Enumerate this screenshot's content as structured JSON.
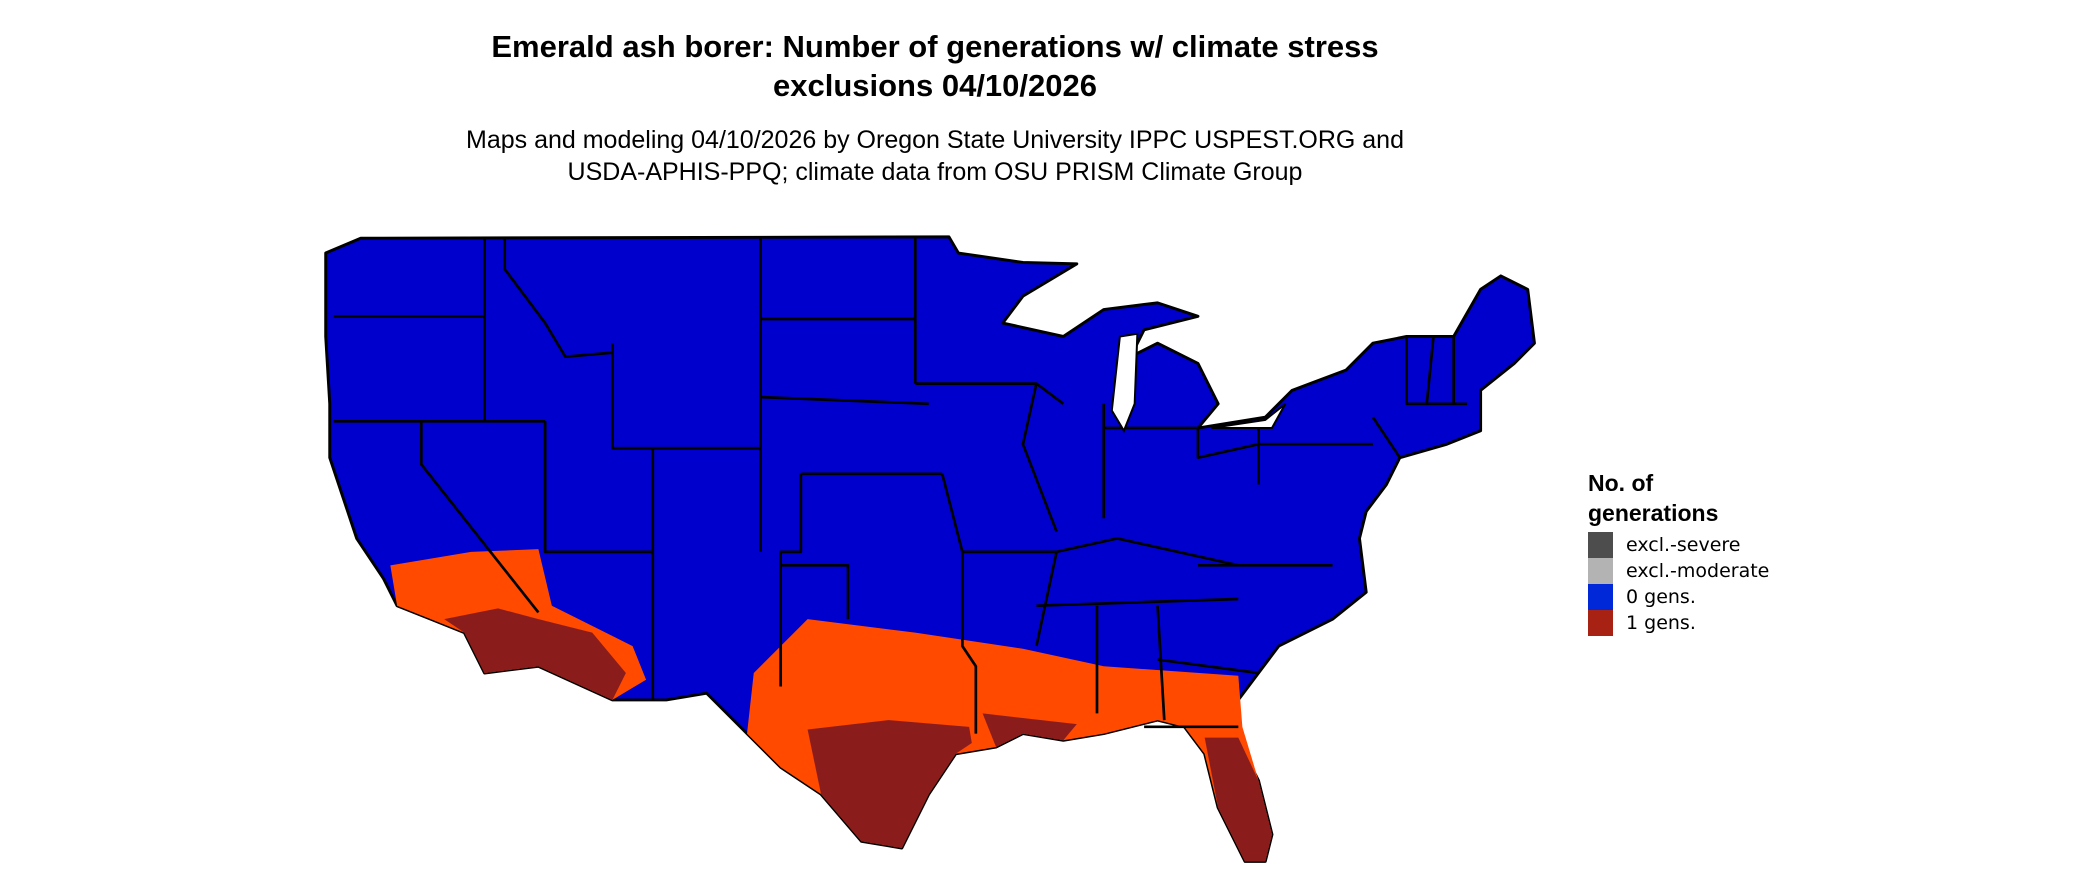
{
  "title": {
    "line1": "Emerald ash borer: Number of generations w/ climate stress",
    "line2": "exclusions 04/10/2026"
  },
  "subtitle": {
    "line1": "Maps and modeling 04/10/2026 by Oregon State University IPPC USPEST.ORG and",
    "line2": "USDA-APHIS-PPQ; climate data from OSU PRISM Climate Group"
  },
  "map": {
    "region": "Contiguous United States",
    "colors": {
      "zero_gens": "#0000cc",
      "one_gens_low": "#ff4a00",
      "one_gens_high": "#8b1c1c",
      "border": "#000000"
    }
  },
  "legend": {
    "title_line1": "No. of",
    "title_line2": "generations",
    "items": [
      {
        "label": "excl.-severe",
        "color": "#4d4d4d"
      },
      {
        "label": "excl.-moderate",
        "color": "#b3b3b3"
      },
      {
        "label": "0 gens.",
        "color": "#0028d8"
      },
      {
        "label": "1 gens.",
        "color": "#a82214"
      }
    ]
  }
}
